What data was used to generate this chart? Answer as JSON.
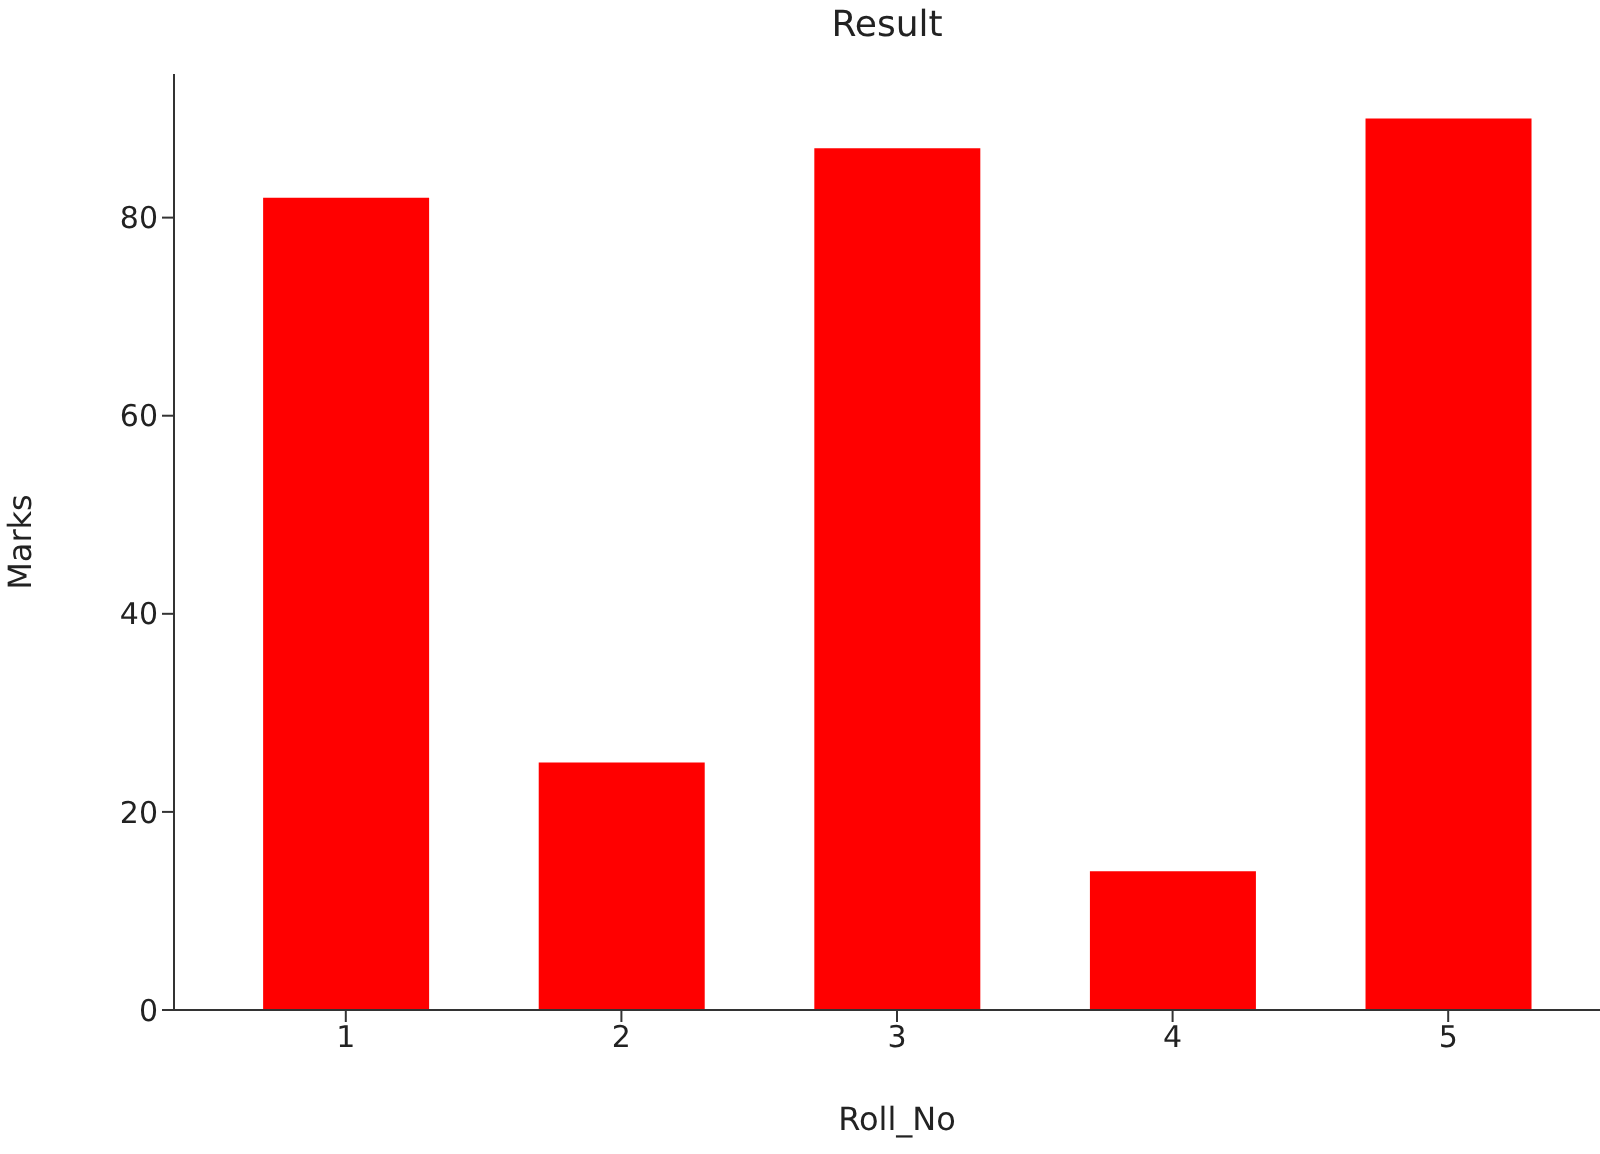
{
  "chart_data": {
    "type": "bar",
    "title": "Result",
    "xlabel": "Roll_No",
    "ylabel": "Marks",
    "categories": [
      "1",
      "2",
      "3",
      "4",
      "5"
    ],
    "values": [
      82,
      25,
      87,
      14,
      90
    ],
    "color": "#ff0000",
    "ylim": [
      0,
      94.5
    ],
    "yticks": [
      0,
      20,
      40,
      60,
      80
    ],
    "grid": false
  }
}
